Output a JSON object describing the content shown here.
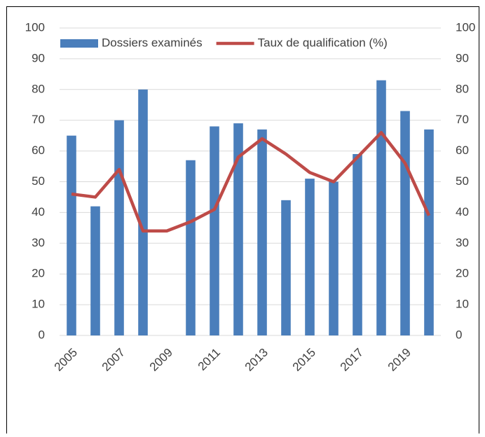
{
  "chart_data": {
    "type": "bar-line",
    "categories": [
      "2005",
      null,
      "2007",
      null,
      "2009",
      null,
      "2011",
      null,
      "2013",
      null,
      "2015",
      null,
      "2017",
      null,
      "2019",
      null
    ],
    "series": [
      {
        "name": "Dossiers examinés",
        "type": "bar",
        "color": "#4a7ebb",
        "values": [
          65,
          42,
          70,
          80,
          null,
          57,
          68,
          69,
          67,
          44,
          51,
          50,
          59,
          83,
          73,
          67
        ]
      },
      {
        "name": "Taux de qualification (%)",
        "type": "line",
        "axis": "y2",
        "color": "#be4b48",
        "values": [
          46,
          45,
          54,
          34,
          34,
          37,
          41,
          58,
          64,
          59,
          53,
          50,
          58,
          66,
          56,
          39
        ]
      }
    ],
    "ylim": [
      0,
      100
    ],
    "yticks": [
      0,
      10,
      20,
      30,
      40,
      50,
      60,
      70,
      80,
      90,
      100
    ],
    "y2lim": [
      0,
      100
    ],
    "y2ticks": [
      0,
      10,
      20,
      30,
      40,
      50,
      60,
      70,
      80,
      90,
      100
    ],
    "grid": true,
    "legend": "top"
  }
}
